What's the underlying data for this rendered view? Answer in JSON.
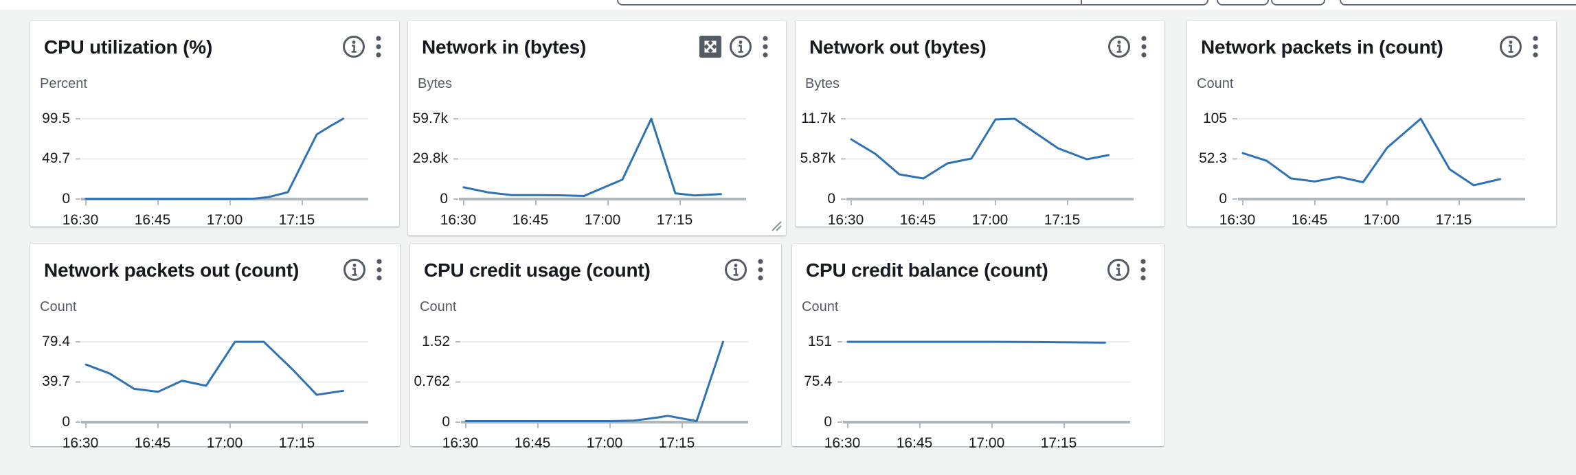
{
  "theme": {
    "page_background": "#f2f3f3",
    "card_background": "#ffffff",
    "series_line_color": "#2d72b5",
    "title_color": "#16191f",
    "unit_label_color": "#545b64",
    "icon_color": "#545b64",
    "gridline_color": "#e9ebed",
    "baseline_color": "#aeb7bb",
    "topbar_fragment_border": "#5f6b7a"
  },
  "topbar": {
    "fragments": [
      "cropped-search-input",
      "cropped-segment-button",
      "cropped-icon-button",
      "cropped-icon-button",
      "cropped-dropdown-button"
    ]
  },
  "chart_data": [
    {
      "id": "cpu-utilization",
      "type": "line",
      "title": "CPU utilization (%)",
      "ylabel": "Percent",
      "y_ticks": [
        "99.5",
        "49.7",
        "0"
      ],
      "y_max": 99.5,
      "x_tick_labels": [
        "16:30",
        "16:45",
        "17:00",
        "17:15"
      ],
      "x_tick_minutes": [
        0,
        15,
        30,
        45
      ],
      "x_domain_minutes": [
        0,
        59
      ],
      "grid": true,
      "legend": "none",
      "icons": [
        "info",
        "kebab-menu"
      ],
      "points": [
        [
          0,
          0.3
        ],
        [
          5,
          0.3
        ],
        [
          10,
          0.3
        ],
        [
          15,
          0.3
        ],
        [
          20,
          0.3
        ],
        [
          25,
          0.3
        ],
        [
          30,
          0.3
        ],
        [
          35,
          0.5
        ],
        [
          38,
          2.5
        ],
        [
          42,
          8.5
        ],
        [
          48,
          80
        ],
        [
          51,
          91
        ],
        [
          53.5,
          99.5
        ]
      ]
    },
    {
      "id": "network-in",
      "type": "line",
      "title": "Network in (bytes)",
      "ylabel": "Bytes",
      "y_ticks": [
        "59.7k",
        "29.8k",
        "0"
      ],
      "y_max": 59700,
      "x_tick_labels": [
        "16:30",
        "16:45",
        "17:00",
        "17:15"
      ],
      "x_tick_minutes": [
        0,
        15,
        30,
        45
      ],
      "x_domain_minutes": [
        0,
        59
      ],
      "grid": true,
      "legend": "none",
      "icons": [
        "expand",
        "info",
        "kebab-menu"
      ],
      "points": [
        [
          0,
          8700
        ],
        [
          5,
          5000
        ],
        [
          10,
          2900
        ],
        [
          15,
          2900
        ],
        [
          20,
          2800
        ],
        [
          25,
          2300
        ],
        [
          33,
          14500
        ],
        [
          39,
          59700
        ],
        [
          44,
          4300
        ],
        [
          48,
          2700
        ],
        [
          53.5,
          3700
        ]
      ]
    },
    {
      "id": "network-out",
      "type": "line",
      "title": "Network out (bytes)",
      "ylabel": "Bytes",
      "y_ticks": [
        "11.7k",
        "5.87k",
        "0"
      ],
      "y_max": 11700,
      "x_tick_labels": [
        "16:30",
        "16:45",
        "17:00",
        "17:15"
      ],
      "x_tick_minutes": [
        0,
        15,
        30,
        45
      ],
      "x_domain_minutes": [
        0,
        59
      ],
      "grid": true,
      "legend": "none",
      "icons": [
        "info",
        "kebab-menu"
      ],
      "points": [
        [
          0,
          8700
        ],
        [
          5,
          6600
        ],
        [
          10,
          3600
        ],
        [
          15,
          3000
        ],
        [
          20,
          5200
        ],
        [
          25,
          5900
        ],
        [
          30,
          11600
        ],
        [
          34,
          11700
        ],
        [
          43,
          7400
        ],
        [
          49,
          5800
        ],
        [
          53.5,
          6400
        ]
      ]
    },
    {
      "id": "network-packets-in",
      "type": "line",
      "title": "Network packets in (count)",
      "ylabel": "Count",
      "y_ticks": [
        "105",
        "52.3",
        "0"
      ],
      "y_max": 105,
      "x_tick_labels": [
        "16:30",
        "16:45",
        "17:00",
        "17:15"
      ],
      "x_tick_minutes": [
        0,
        15,
        30,
        45
      ],
      "x_domain_minutes": [
        0,
        59
      ],
      "grid": true,
      "legend": "none",
      "icons": [
        "info",
        "kebab-menu"
      ],
      "points": [
        [
          0,
          60
        ],
        [
          5,
          50
        ],
        [
          10,
          27
        ],
        [
          15,
          23
        ],
        [
          20,
          29
        ],
        [
          25,
          22
        ],
        [
          30,
          67
        ],
        [
          37,
          105
        ],
        [
          43,
          39
        ],
        [
          48,
          18
        ],
        [
          53.5,
          26
        ]
      ]
    },
    {
      "id": "network-packets-out",
      "type": "line",
      "title": "Network packets out (count)",
      "ylabel": "Count",
      "y_ticks": [
        "79.4",
        "39.7",
        "0"
      ],
      "y_max": 79.4,
      "x_tick_labels": [
        "16:30",
        "16:45",
        "17:00",
        "17:15"
      ],
      "x_tick_minutes": [
        0,
        15,
        30,
        45
      ],
      "x_domain_minutes": [
        0,
        59
      ],
      "grid": true,
      "legend": "none",
      "icons": [
        "info",
        "kebab-menu"
      ],
      "points": [
        [
          0,
          57
        ],
        [
          5,
          48
        ],
        [
          10,
          33
        ],
        [
          15,
          30
        ],
        [
          20,
          41
        ],
        [
          25,
          36
        ],
        [
          31,
          79.4
        ],
        [
          37,
          79.4
        ],
        [
          43,
          52
        ],
        [
          48,
          27
        ],
        [
          53.5,
          31
        ]
      ]
    },
    {
      "id": "cpu-credit-usage",
      "type": "line",
      "title": "CPU credit usage (count)",
      "ylabel": "Count",
      "y_ticks": [
        "1.52",
        "0.762",
        "0"
      ],
      "y_max": 1.52,
      "x_tick_labels": [
        "16:30",
        "16:45",
        "17:00",
        "17:15"
      ],
      "x_tick_minutes": [
        0,
        15,
        30,
        45
      ],
      "x_domain_minutes": [
        0,
        59
      ],
      "grid": true,
      "legend": "none",
      "icons": [
        "info",
        "kebab-menu"
      ],
      "points": [
        [
          0,
          0.02
        ],
        [
          5,
          0.02
        ],
        [
          10,
          0.02
        ],
        [
          15,
          0.02
        ],
        [
          20,
          0.02
        ],
        [
          25,
          0.02
        ],
        [
          30,
          0.02
        ],
        [
          35,
          0.03
        ],
        [
          40,
          0.09
        ],
        [
          42,
          0.12
        ],
        [
          48,
          0.02
        ],
        [
          53.5,
          1.52
        ]
      ]
    },
    {
      "id": "cpu-credit-balance",
      "type": "line",
      "title": "CPU credit balance (count)",
      "ylabel": "Count",
      "y_ticks": [
        "151",
        "75.4",
        "0"
      ],
      "y_max": 151,
      "x_tick_labels": [
        "16:30",
        "16:45",
        "17:00",
        "17:15"
      ],
      "x_tick_minutes": [
        0,
        15,
        30,
        45
      ],
      "x_domain_minutes": [
        0,
        59
      ],
      "grid": true,
      "legend": "none",
      "icons": [
        "info",
        "kebab-menu"
      ],
      "points": [
        [
          0,
          151
        ],
        [
          10,
          151
        ],
        [
          20,
          151
        ],
        [
          30,
          151
        ],
        [
          40,
          150.5
        ],
        [
          53.5,
          149.5
        ]
      ]
    }
  ]
}
